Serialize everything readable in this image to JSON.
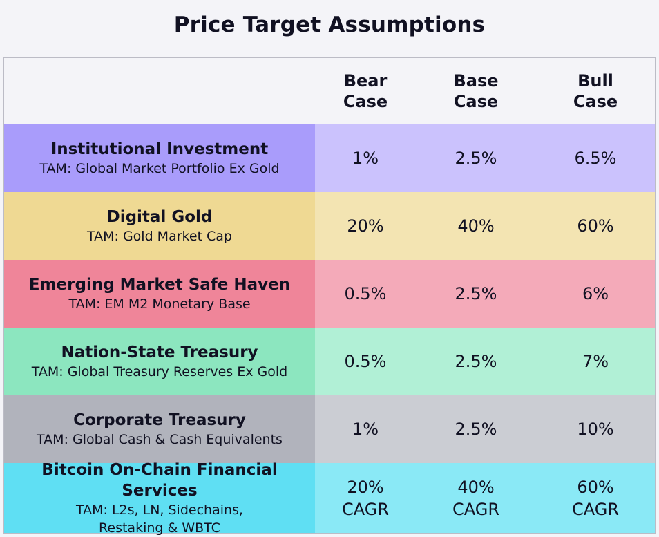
{
  "title": "Price Target Assumptions",
  "chart_data": {
    "type": "table",
    "title": "Price Target Assumptions",
    "columns": [
      "Bear Case",
      "Base Case",
      "Bull Case"
    ],
    "header": {
      "bear_line1": "Bear",
      "bear_line2": "Case",
      "base_line1": "Base",
      "base_line2": "Case",
      "bull_line1": "Bull",
      "bull_line2": "Case"
    },
    "rows": [
      {
        "name": "Institutional Investment",
        "tam": "TAM: Global Market Portfolio Ex Gold",
        "bear": "1%",
        "base": "2.5%",
        "bull": "6.5%",
        "label_color": "#a99cfb",
        "value_color": "#cbc2fd"
      },
      {
        "name": "Digital Gold",
        "tam": "TAM: Gold Market Cap",
        "bear": "20%",
        "base": "40%",
        "bull": "60%",
        "label_color": "#efd993",
        "value_color": "#f3e4b2"
      },
      {
        "name": "Emerging Market Safe Haven",
        "tam": "TAM: EM M2 Monetary Base",
        "bear": "0.5%",
        "base": "2.5%",
        "bull": "6%",
        "label_color": "#ef8599",
        "value_color": "#f4aab9"
      },
      {
        "name": "Nation-State Treasury",
        "tam": "TAM: Global Treasury Reserves Ex Gold",
        "bear": "0.5%",
        "base": "2.5%",
        "bull": "7%",
        "label_color": "#8ce6bf",
        "value_color": "#b1f0d6"
      },
      {
        "name": "Corporate Treasury",
        "tam": "TAM: Global Cash & Cash Equivalents",
        "bear": "1%",
        "base": "2.5%",
        "bull": "10%",
        "label_color": "#b1b3bc",
        "value_color": "#cbcdd3"
      },
      {
        "name": "Bitcoin On-Chain Financial Services",
        "tam_line1": "TAM: L2s, LN, Sidechains,",
        "tam_line2": "Restaking & WBTC",
        "bear": "20%",
        "bear_line2": "CAGR",
        "base": "40%",
        "base_line2": "CAGR",
        "bull": "60%",
        "bull_line2": "CAGR",
        "label_color": "#5fdff3",
        "value_color": "#8ae9f6"
      }
    ]
  }
}
